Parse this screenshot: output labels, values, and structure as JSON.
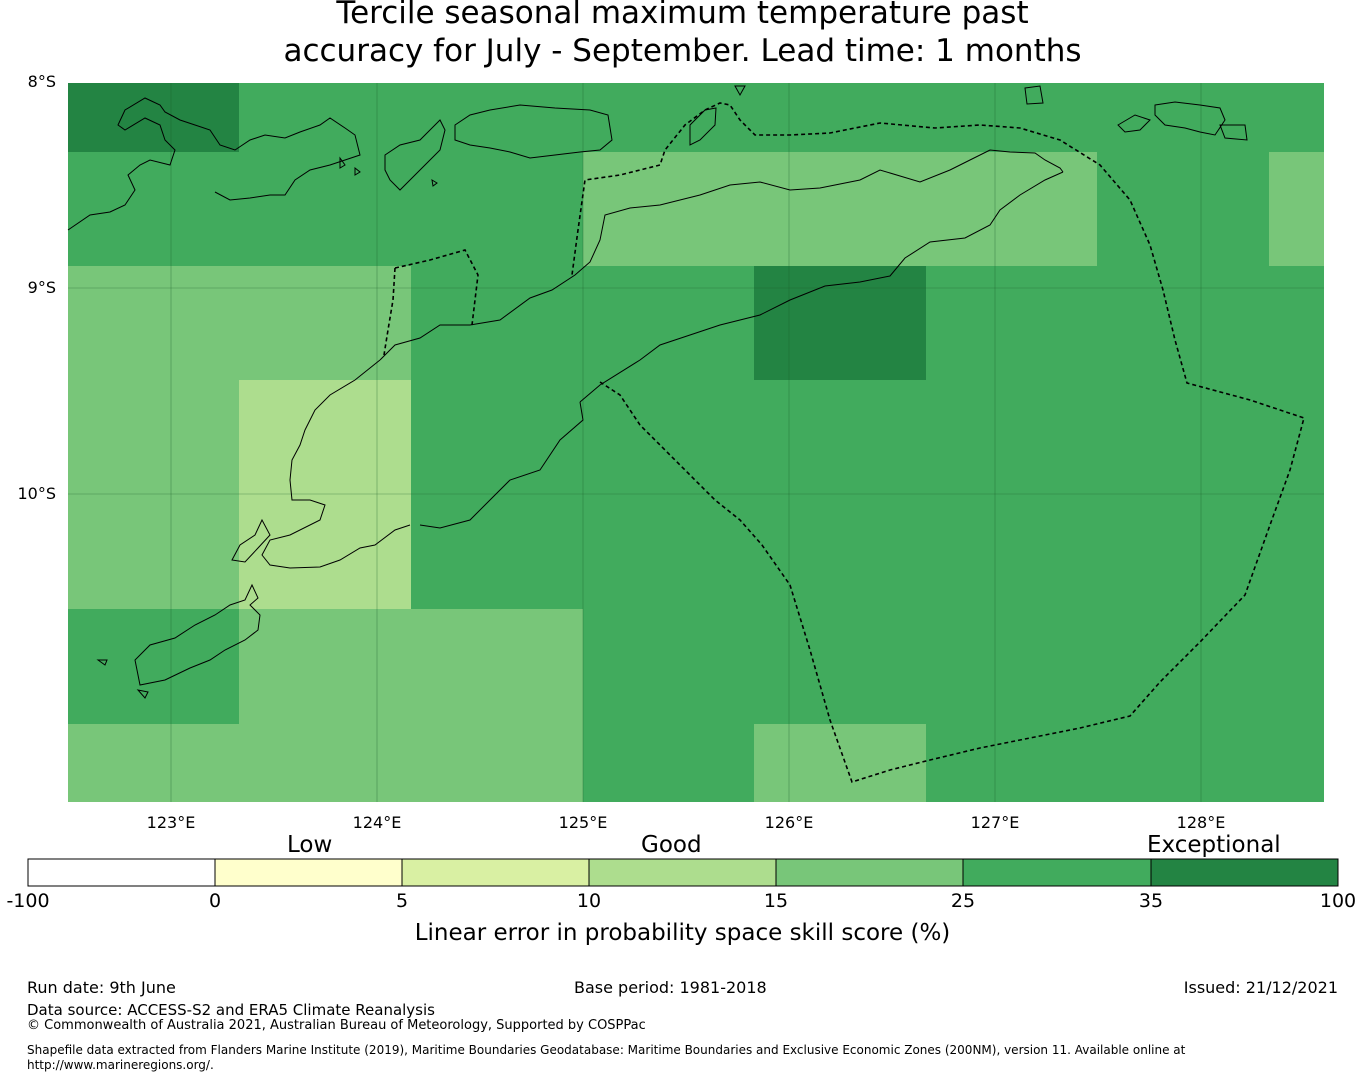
{
  "title": {
    "line1": "Tercile seasonal maximum temperature past",
    "line2": "accuracy for July - September. Lead time: 1 months"
  },
  "map": {
    "lat_labels": [
      "8°S",
      "9°S",
      "10°S"
    ],
    "lon_labels": [
      "123°E",
      "124°E",
      "125°E",
      "126°E",
      "127°E",
      "128°E"
    ],
    "lon_range": [
      122.5,
      128.6
    ],
    "lat_range": [
      -8.0,
      -11.5
    ],
    "colors": {
      "c15_25": "#78c679",
      "c25_35": "#41ab5d",
      "c35_100": "#238443",
      "c10_15": "#addd8e"
    },
    "grid_cells_note": "skill categories per grid cell rendered as colored tiles"
  },
  "colorbar": {
    "categories": [
      {
        "label": "Low"
      },
      {
        "label": "Good"
      },
      {
        "label": "Exceptional"
      }
    ],
    "ticks": [
      "-100",
      "0",
      "5",
      "10",
      "15",
      "25",
      "35",
      "100"
    ],
    "segments": [
      {
        "from": -100,
        "to": 0,
        "color": "#ffffff"
      },
      {
        "from": 0,
        "to": 5,
        "color": "#ffffcc"
      },
      {
        "from": 5,
        "to": 10,
        "color": "#d9f0a3"
      },
      {
        "from": 10,
        "to": 15,
        "color": "#addd8e"
      },
      {
        "from": 15,
        "to": 25,
        "color": "#78c679"
      },
      {
        "from": 25,
        "to": 35,
        "color": "#41ab5d"
      },
      {
        "from": 35,
        "to": 100,
        "color": "#238443"
      }
    ],
    "title": "Linear error in probability space skill score (%)"
  },
  "footer": {
    "run_date": "Run date: 9th June",
    "base_period": "Base period: 1981-2018",
    "issued": "Issued: 21/12/2021",
    "data_source": "Data source: ACCESS-S2 and ERA5 Climate Reanalysis",
    "copyright": "© Commonwealth of Australia 2021, Australian Bureau of Meteorology, Supported by COSPPac",
    "shapefile_line1": "Shapefile data extracted from Flanders Marine Institute (2019), Maritime Boundaries Geodatabase: Maritime Boundaries and Exclusive Economic Zones (200NM), version 11. Available online at",
    "shapefile_line2": "http://www.marineregions.org/."
  }
}
